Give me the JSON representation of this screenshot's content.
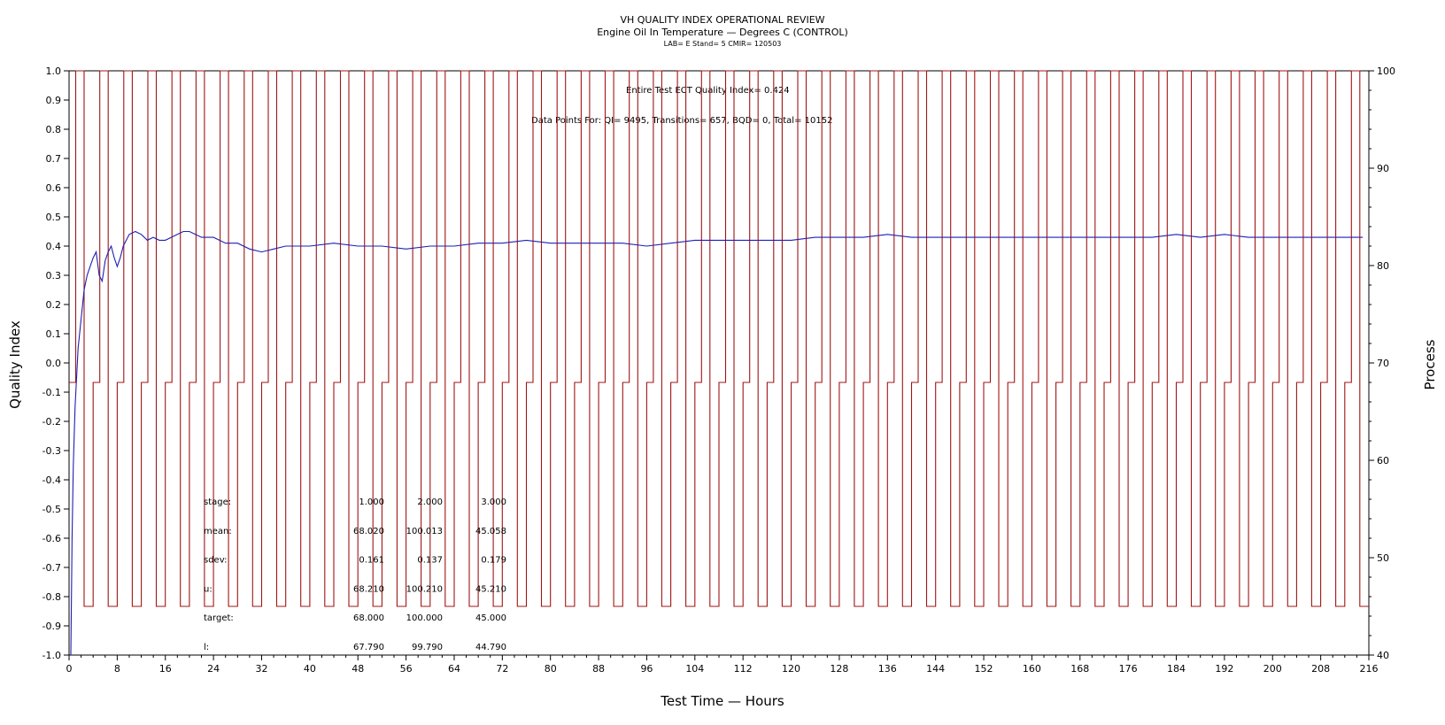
{
  "chart_data": {
    "type": "line",
    "title": "VH QUALITY INDEX OPERATIONAL REVIEW",
    "subtitle": "Engine Oil In Temperature — Degrees C (CONTROL)",
    "subtitle2": "LAB= E Stand= 5 CMIR= 120503",
    "xlabel": "Test Time — Hours",
    "ylabel": "Quality Index",
    "y2label": "Process",
    "xlim": [
      0,
      216
    ],
    "ylim": [
      -1.0,
      1.0
    ],
    "y2lim": [
      40,
      100
    ],
    "xticks": [
      0,
      8,
      16,
      24,
      32,
      40,
      48,
      56,
      64,
      72,
      80,
      88,
      96,
      104,
      112,
      120,
      128,
      136,
      144,
      152,
      160,
      168,
      176,
      184,
      192,
      200,
      208,
      216
    ],
    "yticks": [
      "-1.0",
      "-0.9",
      "-0.8",
      "-0.7",
      "-0.6",
      "-0.5",
      "-0.4",
      "-0.3",
      "-0.2",
      "-0.1",
      "0.0",
      "0.1",
      "0.2",
      "0.3",
      "0.4",
      "0.5",
      "0.6",
      "0.7",
      "0.8",
      "0.9",
      "1.0"
    ],
    "y2ticks": [
      40,
      50,
      60,
      70,
      80,
      90,
      100
    ],
    "grid": false,
    "annotations": {
      "qi_line": "Entire Test ECT Quality Index=   0.424",
      "points_line": "Data Points For: QI=  9495, Transitions=    657, BQD=      0, Total=  10152"
    },
    "stats_table": {
      "rows": [
        {
          "label": "stage:",
          "values": [
            "1.000",
            "2.000",
            "3.000"
          ]
        },
        {
          "label": "mean:",
          "values": [
            "68.020",
            "100.013",
            "45.058"
          ]
        },
        {
          "label": "sdev:",
          "values": [
            "0.161",
            "0.137",
            "0.179"
          ]
        },
        {
          "label": "u:",
          "values": [
            "68.210",
            "100.210",
            "45.210"
          ]
        },
        {
          "label": "target:",
          "values": [
            "68.000",
            "100.000",
            "45.000"
          ]
        },
        {
          "label": "l:",
          "values": [
            "67.790",
            "99.790",
            "44.790"
          ]
        }
      ]
    },
    "series": [
      {
        "name": "Quality Index",
        "axis": "left",
        "color": "#1f1fb4",
        "x": [
          0.3,
          0.5,
          0.7,
          1.0,
          1.5,
          2.0,
          2.5,
          3.0,
          3.5,
          4.0,
          4.5,
          5.0,
          5.5,
          6.0,
          6.5,
          7.0,
          7.5,
          8.0,
          8.5,
          9.0,
          10.0,
          11.0,
          12.0,
          13.0,
          14.0,
          15.0,
          16.0,
          17.0,
          18.0,
          19.0,
          20.0,
          21.0,
          22.0,
          23.0,
          24.0,
          26.0,
          28.0,
          30.0,
          32.0,
          34.0,
          36.0,
          40.0,
          44.0,
          48.0,
          52.0,
          56.0,
          60.0,
          64.0,
          68.0,
          72.0,
          76.0,
          80.0,
          84.0,
          88.0,
          92.0,
          96.0,
          100.0,
          104.0,
          108.0,
          112.0,
          116.0,
          120.0,
          124.0,
          128.0,
          132.0,
          136.0,
          140.0,
          144.0,
          148.0,
          152.0,
          156.0,
          160.0,
          164.0,
          168.0,
          172.0,
          176.0,
          180.0,
          184.0,
          188.0,
          192.0,
          196.0,
          200.0,
          204.0,
          208.0,
          212.0,
          215.0
        ],
        "y": [
          -1.0,
          -0.6,
          -0.35,
          -0.15,
          0.05,
          0.15,
          0.25,
          0.3,
          0.33,
          0.36,
          0.38,
          0.3,
          0.28,
          0.35,
          0.38,
          0.4,
          0.36,
          0.33,
          0.36,
          0.4,
          0.44,
          0.45,
          0.44,
          0.42,
          0.43,
          0.42,
          0.42,
          0.43,
          0.44,
          0.45,
          0.45,
          0.44,
          0.43,
          0.43,
          0.43,
          0.41,
          0.41,
          0.39,
          0.38,
          0.39,
          0.4,
          0.4,
          0.41,
          0.4,
          0.4,
          0.39,
          0.4,
          0.4,
          0.41,
          0.41,
          0.42,
          0.41,
          0.41,
          0.41,
          0.41,
          0.4,
          0.41,
          0.42,
          0.42,
          0.42,
          0.42,
          0.42,
          0.43,
          0.43,
          0.43,
          0.44,
          0.43,
          0.43,
          0.43,
          0.43,
          0.43,
          0.43,
          0.43,
          0.43,
          0.43,
          0.43,
          0.43,
          0.44,
          0.43,
          0.44,
          0.43,
          0.43,
          0.43,
          0.43,
          0.43,
          0.43
        ]
      },
      {
        "name": "Process",
        "axis": "right",
        "color": "#a01515",
        "cycle_hours": 4.0,
        "stage_sequence": [
          {
            "stage": 1,
            "value": 68.0,
            "hours": 1.1
          },
          {
            "stage": 2,
            "value": 100.0,
            "hours": 1.4
          },
          {
            "stage": 3,
            "value": 45.0,
            "hours": 1.5
          }
        ],
        "start_hour": 0.0,
        "end_hour": 216.0
      }
    ]
  }
}
